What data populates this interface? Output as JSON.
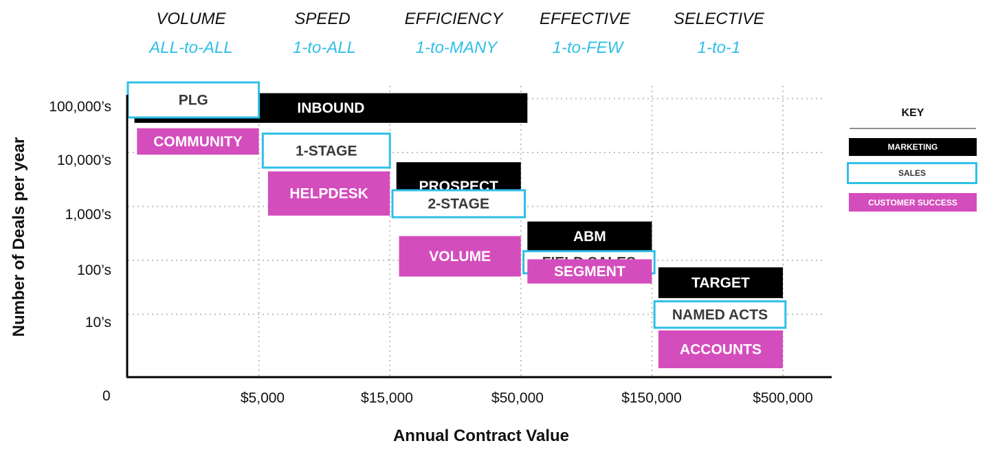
{
  "chart_data": {
    "type": "bar",
    "title": "",
    "xlabel": "Annual Contract Value",
    "ylabel": "Number of Deals per year",
    "x_scale": "categorical",
    "y_scale": "log",
    "x_ticks": [
      "$5,000",
      "$15,000",
      "$50,000",
      "$150,000",
      "$500,000"
    ],
    "y_ticks": [
      "100,000’s",
      "10,000’s",
      "1,000’s",
      "100’s",
      "10’s"
    ],
    "origin_label": "0",
    "grid": true,
    "legend_position": "right",
    "colors": {
      "marketing": "#000000",
      "sales": "#2fbfe6",
      "customer_success": "#d44dbc"
    },
    "strategies": [
      {
        "name": "VOLUME",
        "approach": "ALL-to-ALL"
      },
      {
        "name": "SPEED",
        "approach": "1-to-ALL"
      },
      {
        "name": "EFFICIENCY",
        "approach": "1-to-MANY"
      },
      {
        "name": "EFFECTIVE",
        "approach": "1-to-FEW"
      },
      {
        "name": "SELECTIVE",
        "approach": "1-to-1"
      }
    ],
    "legend": {
      "title": "KEY",
      "entries": [
        {
          "key": "marketing",
          "label": "MARKETING"
        },
        {
          "key": "sales",
          "label": "SALES"
        },
        {
          "key": "customer_success",
          "label": "CUSTOMER SUCCESS"
        }
      ]
    },
    "blocks": [
      {
        "label": "INBOUND",
        "category": "marketing",
        "x_range": [
          0.05,
          3.05
        ],
        "y_range": [
          4.55,
          5.1
        ]
      },
      {
        "label": "PLG",
        "category": "sales",
        "x_range": [
          0.0,
          1.0
        ],
        "y_range": [
          4.65,
          5.3
        ]
      },
      {
        "label": "COMMUNITY",
        "category": "customer_success",
        "x_range": [
          0.07,
          1.0
        ],
        "y_range": [
          3.96,
          4.45
        ]
      },
      {
        "label": "1-STAGE",
        "category": "sales",
        "x_range": [
          1.03,
          2.0
        ],
        "y_range": [
          3.72,
          4.35
        ]
      },
      {
        "label": "HELPDESK",
        "category": "customer_success",
        "x_range": [
          1.07,
          2.0
        ],
        "y_range": [
          2.83,
          3.65
        ]
      },
      {
        "label": "PROSPECT",
        "category": "marketing",
        "x_range": [
          2.05,
          3.0
        ],
        "y_range": [
          2.93,
          3.82
        ]
      },
      {
        "label": "2-STAGE",
        "category": "sales",
        "x_range": [
          2.02,
          3.03
        ],
        "y_range": [
          2.8,
          3.3
        ]
      },
      {
        "label": "VOLUME",
        "category": "customer_success",
        "x_range": [
          2.07,
          3.0
        ],
        "y_range": [
          1.7,
          2.45
        ]
      },
      {
        "label": "ABM",
        "category": "marketing",
        "x_range": [
          3.05,
          4.0
        ],
        "y_range": [
          2.17,
          2.72
        ]
      },
      {
        "label": "FIELD SALES",
        "category": "sales",
        "x_range": [
          3.02,
          4.02
        ],
        "y_range": [
          1.76,
          2.17
        ]
      },
      {
        "label": "SEGMENT",
        "category": "customer_success",
        "x_range": [
          3.05,
          4.0
        ],
        "y_range": [
          1.57,
          2.02
        ]
      },
      {
        "label": "TARGET",
        "category": "marketing",
        "x_range": [
          4.05,
          5.0
        ],
        "y_range": [
          1.3,
          1.87
        ]
      },
      {
        "label": "NAMED ACTS",
        "category": "sales",
        "x_range": [
          4.02,
          5.02
        ],
        "y_range": [
          0.75,
          1.24
        ]
      },
      {
        "label": "ACCOUNTS",
        "category": "customer_success",
        "x_range": [
          4.05,
          5.0
        ],
        "y_range": [
          0.0,
          0.7
        ]
      }
    ]
  }
}
